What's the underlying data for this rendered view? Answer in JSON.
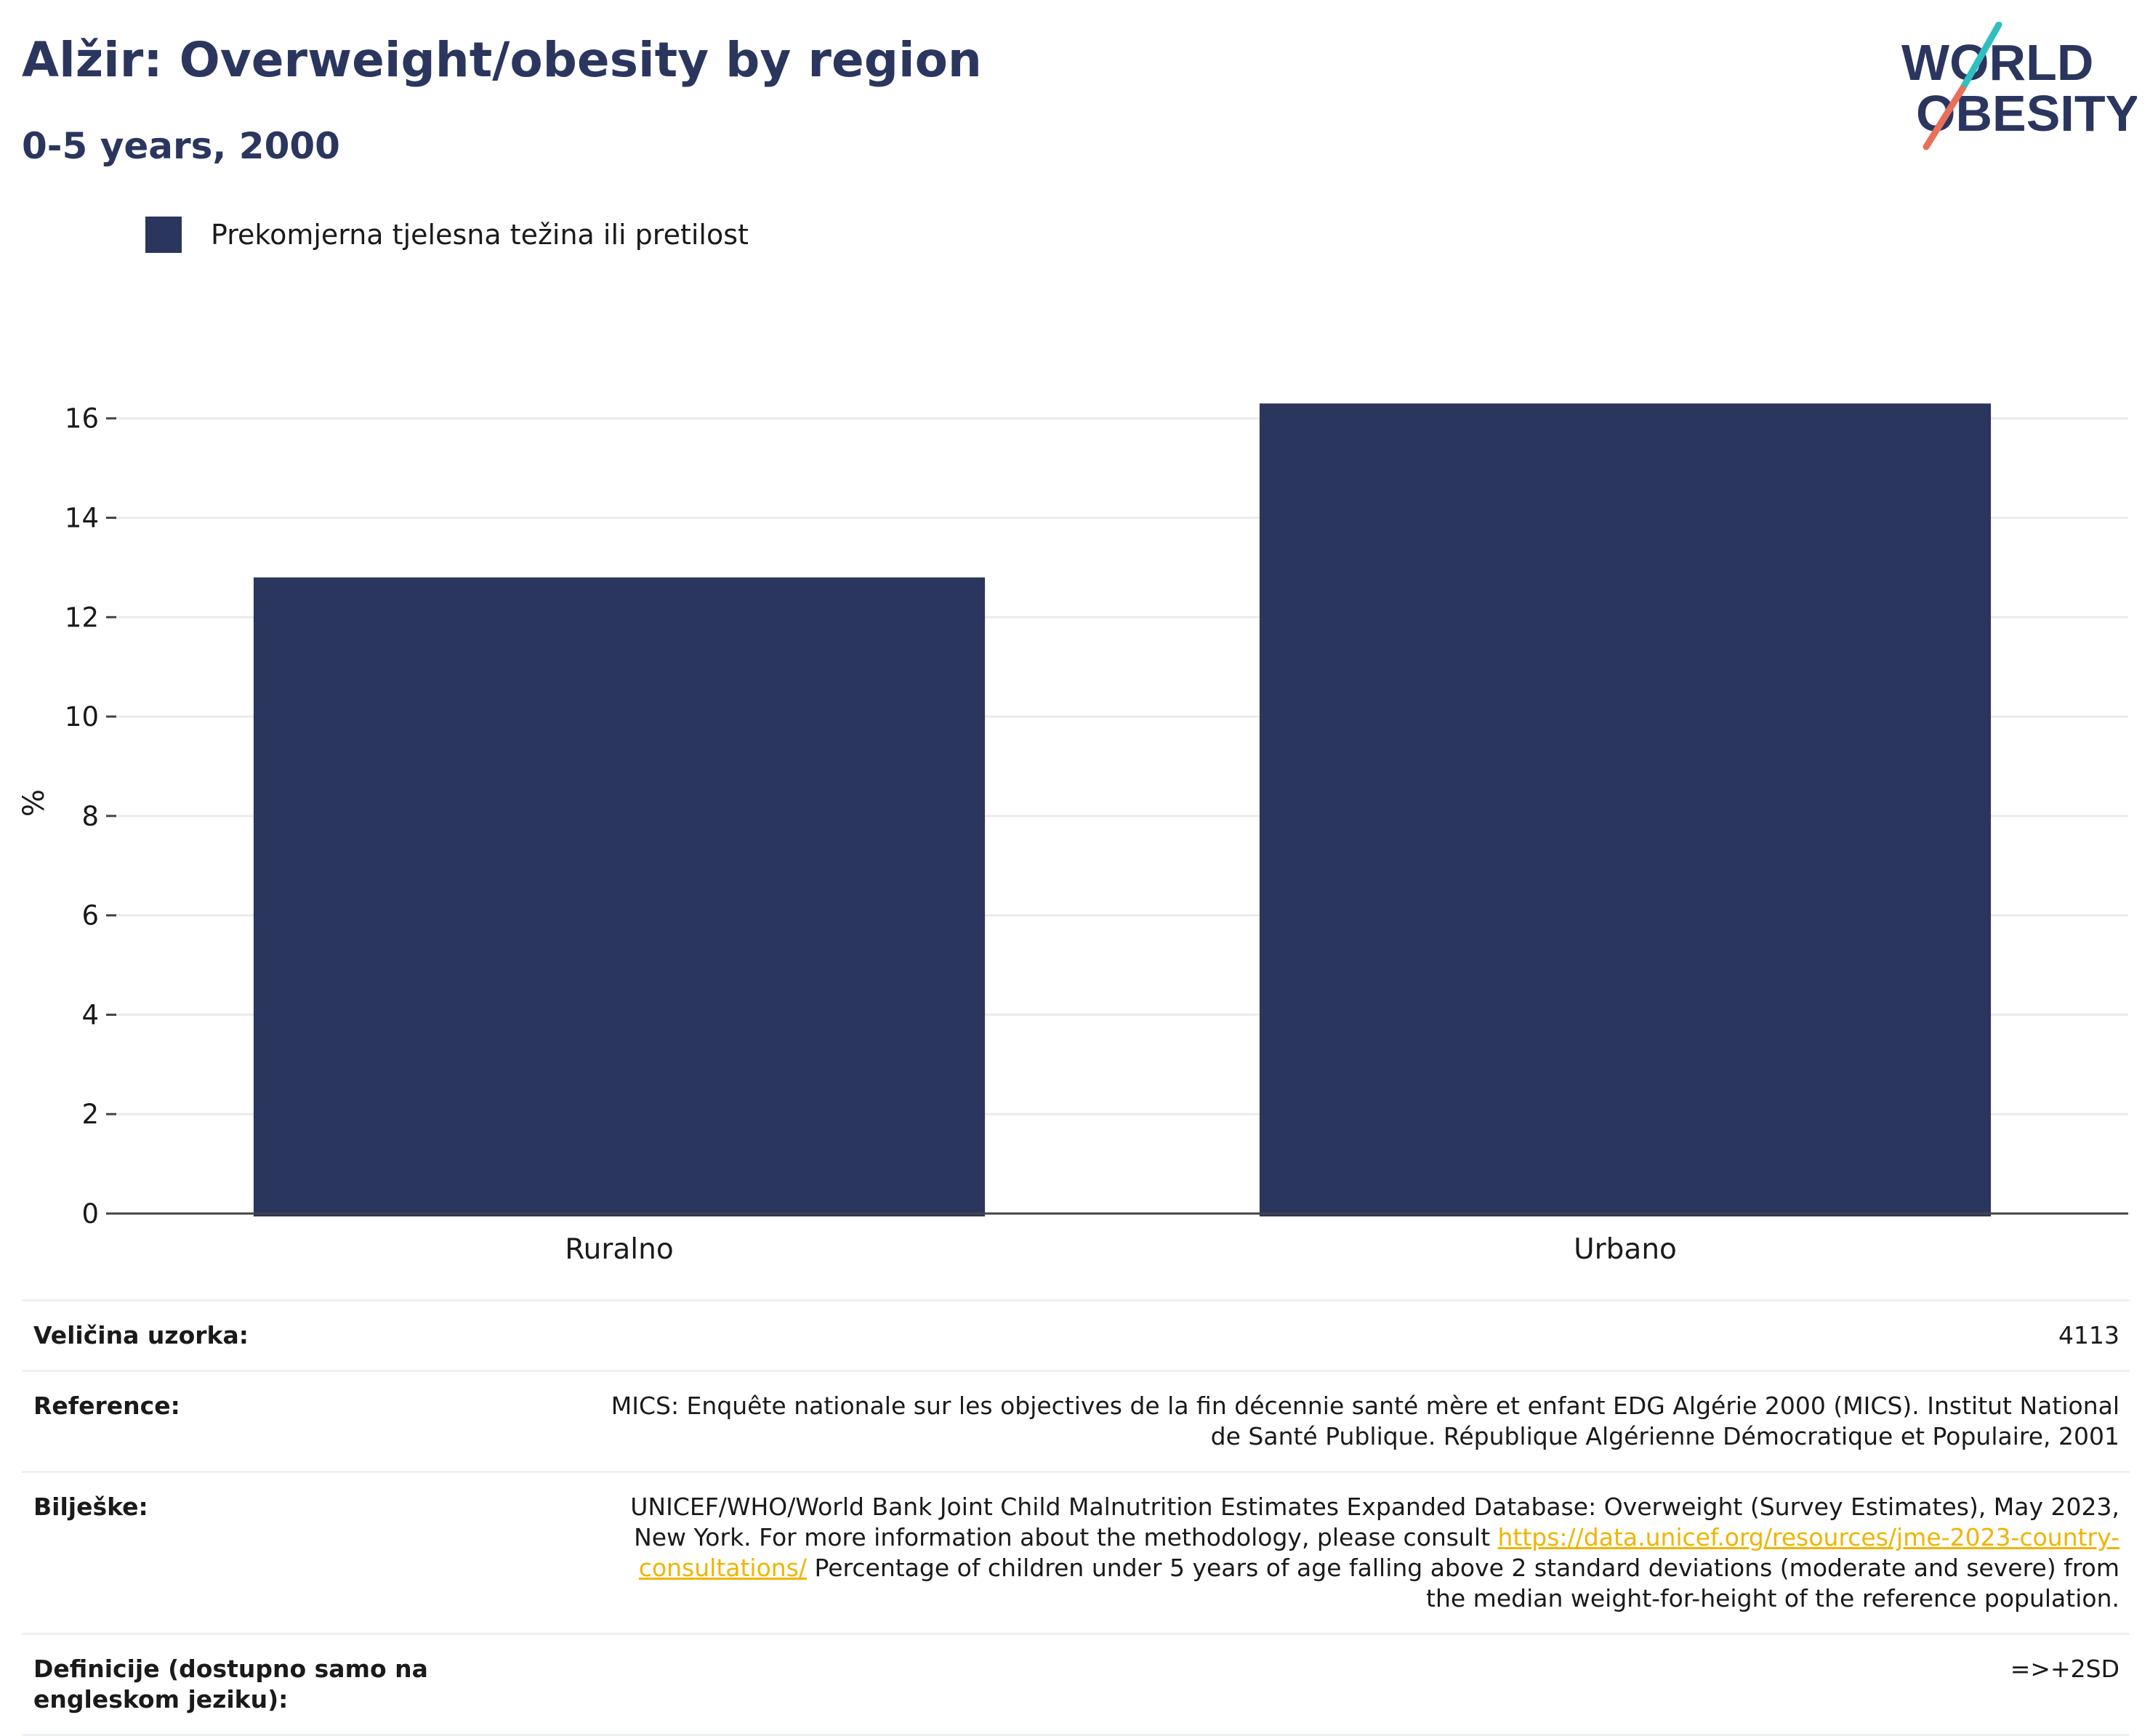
{
  "header": {
    "title": "Alžir: Overweight/obesity by region",
    "subtitle": "0-5 years, 2000"
  },
  "logo": {
    "line1": "WORLD",
    "line2": "OBESITY",
    "colors": {
      "text": "#2b365f",
      "slash_top": "#2fbfbf",
      "slash_bottom": "#e8705a"
    }
  },
  "legend": {
    "label": "Prekomjerna tjelesna težina ili pretilost",
    "color": "#2b365f"
  },
  "chart_data": {
    "type": "bar",
    "categories": [
      "Ruralno",
      "Urbano"
    ],
    "series": [
      {
        "name": "Prekomjerna tjelesna težina ili pretilost",
        "values": [
          12.8,
          16.3
        ],
        "color": "#2b365f"
      }
    ],
    "ylabel": "%",
    "ylim": [
      0,
      17.4
    ],
    "yticks": [
      0,
      2,
      4,
      6,
      8,
      10,
      12,
      14,
      16
    ],
    "grid": true,
    "legend_position": "top-left"
  },
  "info": {
    "sample_size": {
      "label": "Veličina uzorka:",
      "value": "4113"
    },
    "reference": {
      "label": "Reference:",
      "value": "MICS: Enquête nationale sur les objectives de la fin décennie santé mère et enfant EDG Algérie 2000 (MICS). Institut National de Santé Publique. République Algérienne Démocratique et Populaire, 2001"
    },
    "notes": {
      "label": "Bilješke:",
      "text_before": "UNICEF/WHO/World Bank Joint Child Malnutrition Estimates Expanded Database: Overweight (Survey Estimates), May 2023, New York. For more information about the methodology, please consult ",
      "link": "https://data.unicef.org/resources/jme-2023-country-consultations/",
      "text_after": " Percentage of children under 5 years of age falling above 2 standard deviations (moderate and severe) from the median weight-for-height of the reference population."
    },
    "definitions": {
      "label": "Definicije (dostupno samo na engleskom jeziku):",
      "value": "=>+2SD"
    }
  }
}
